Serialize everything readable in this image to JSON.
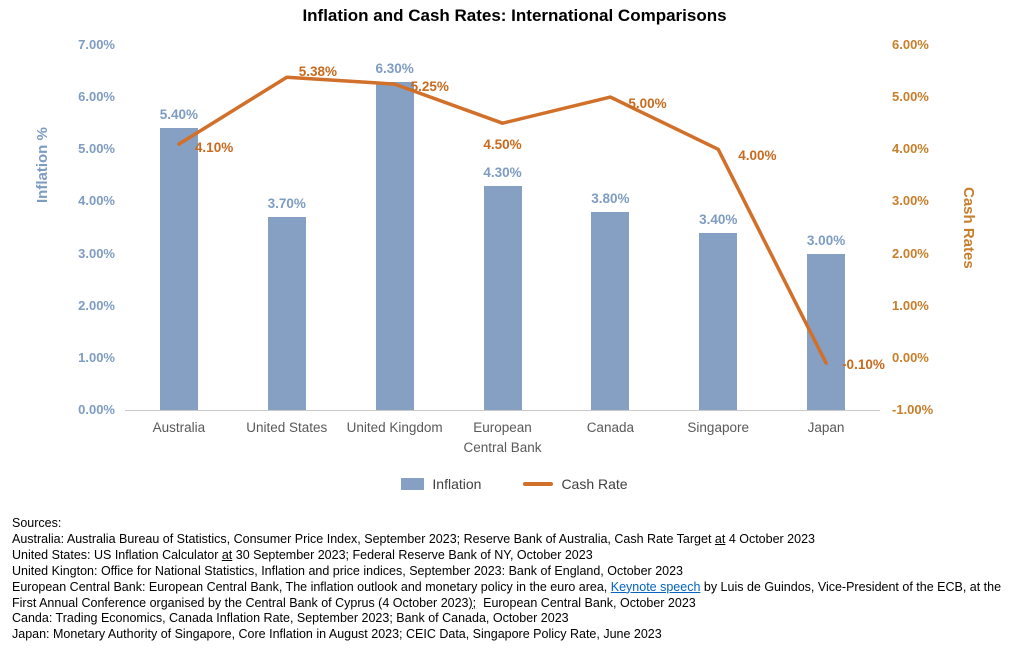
{
  "title": "Inflation and Cash Rates: International Comparisons",
  "colors": {
    "bar": "#85A0C3",
    "bar_label": "#7E9CC2",
    "line": "#D1702A",
    "line_label": "#C96A1E",
    "left_tick": "#7E9CC2",
    "right_tick": "#C87E2A",
    "category": "#595959",
    "baseline": "#C9C9C9",
    "link": "#0563C1"
  },
  "chart_data": {
    "type": "combo",
    "categories": [
      "Australia",
      "United States",
      "United Kingdom",
      "European Central Bank",
      "Canada",
      "Singapore",
      "Japan"
    ],
    "series": [
      {
        "name": "Inflation",
        "type": "bar",
        "values": [
          5.4,
          3.7,
          6.3,
          4.3,
          3.8,
          3.4,
          3.0
        ],
        "labels": [
          "5.40%",
          "3.70%",
          "6.30%",
          "4.30%",
          "3.80%",
          "3.40%",
          "3.00%"
        ],
        "axis": "left"
      },
      {
        "name": "Cash Rate",
        "type": "line",
        "values": [
          4.1,
          5.38,
          5.25,
          4.5,
          5.0,
          4.0,
          -0.1
        ],
        "labels": [
          "4.10%",
          "5.38%",
          "5.25%",
          "4.50%",
          "5.00%",
          "4.00%",
          "-0.10%"
        ],
        "axis": "right"
      }
    ],
    "left_axis": {
      "label": "Inflation %",
      "min": 0,
      "max": 7,
      "ticks": [
        "0.00%",
        "1.00%",
        "2.00%",
        "3.00%",
        "4.00%",
        "5.00%",
        "6.00%",
        "7.00%"
      ]
    },
    "right_axis": {
      "label": "Cash Rates",
      "min": -1,
      "max": 6,
      "ticks": [
        "-1.00%",
        "0.00%",
        "1.00%",
        "2.00%",
        "3.00%",
        "4.00%",
        "5.00%",
        "6.00%"
      ]
    },
    "legend": [
      {
        "label": "Inflation",
        "type": "bar"
      },
      {
        "label": "Cash Rate",
        "type": "line"
      }
    ],
    "legend_position": "bottom",
    "grid": false
  },
  "sources": {
    "lines": [
      [
        {
          "t": "Sources:"
        }
      ],
      [
        {
          "t": "Australia: Australia Bureau of Statistics, Consumer Price Index, September 2023; Reserve Bank of Australia, Cash Rate Target "
        },
        {
          "t": "at",
          "s": "u"
        },
        {
          "t": " 4 October 2023"
        }
      ],
      [
        {
          "t": "United States: US Inflation Calculator "
        },
        {
          "t": "at",
          "s": "u"
        },
        {
          "t": " 30 September 2023; Federal Reserve Bank of NY, October 2023"
        }
      ],
      [
        {
          "t": "United Kington: Office for National Statistics, Inflation and price indices, September 2023: Bank of England, October 2023"
        }
      ],
      [
        {
          "t": "European Central Bank: European Central Bank, The inflation outlook and monetary policy in the euro area, "
        },
        {
          "t": "Keynote speech",
          "s": "link"
        },
        {
          "t": " by Luis de Guindos, Vice-President of the ECB, at the First Annual Conference organised by the Central Bank of Cyprus (4 October 2023"
        },
        {
          "t": ");",
          "s": "u"
        },
        {
          "t": "  European Central Bank, October 2023"
        }
      ],
      [
        {
          "t": "Canda: Trading Economics, Canada Inflation Rate, September 2023; Bank of Canada, October 2023"
        }
      ],
      [
        {
          "t": "Japan: Monetary Authority of Singapore, Core Inflation in August 2023; CEIC Data, Singapore Policy Rate, June 2023"
        }
      ]
    ]
  }
}
